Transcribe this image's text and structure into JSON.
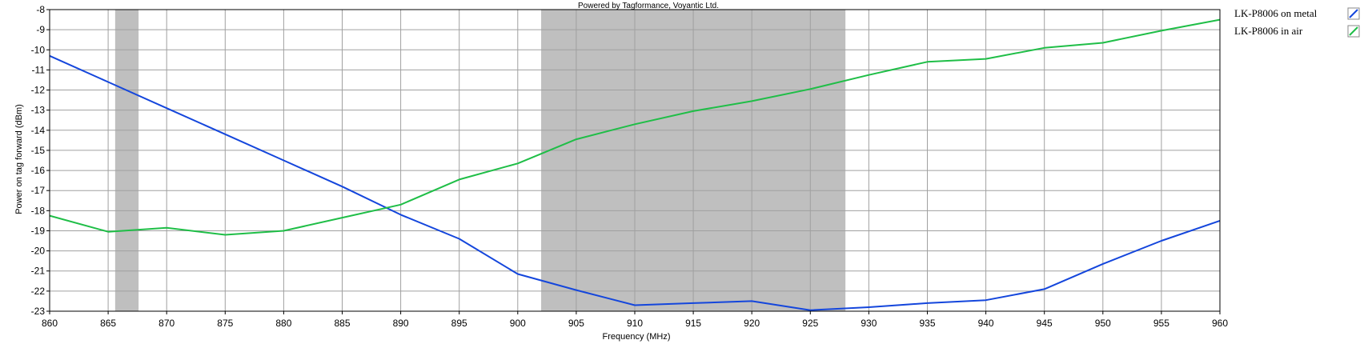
{
  "chart_data": {
    "type": "line",
    "title": "Powered by Tagformance, Voyantic Ltd.",
    "xlabel": "Frequency (MHz)",
    "ylabel": "Power on tag forward (dBm)",
    "xlim": [
      860,
      960
    ],
    "ylim": [
      -23,
      -8
    ],
    "x_ticks": [
      860,
      865,
      870,
      875,
      880,
      885,
      890,
      895,
      900,
      905,
      910,
      915,
      920,
      925,
      930,
      935,
      940,
      945,
      950,
      955,
      960
    ],
    "y_ticks": [
      -8,
      -9,
      -10,
      -11,
      -12,
      -13,
      -14,
      -15,
      -16,
      -17,
      -18,
      -19,
      -20,
      -21,
      -22,
      -23
    ],
    "grid": true,
    "legend_position": "right",
    "shaded_bands": [
      {
        "from": 865.6,
        "to": 867.6,
        "color": "#bfbfbf"
      },
      {
        "from": 902,
        "to": 928,
        "color": "#bfbfbf"
      }
    ],
    "x": [
      860,
      865,
      870,
      875,
      880,
      885,
      890,
      895,
      900,
      905,
      910,
      915,
      920,
      925,
      930,
      935,
      940,
      945,
      950,
      955,
      960
    ],
    "series": [
      {
        "name": "LK-P8006 on metal",
        "color": "#1446dc",
        "values": [
          -10.3,
          -11.6,
          -12.9,
          -14.2,
          -15.5,
          -16.8,
          -18.2,
          -19.4,
          -21.15,
          -21.95,
          -22.7,
          -22.6,
          -22.5,
          -22.95,
          -22.8,
          -22.6,
          -22.45,
          -21.9,
          -20.65,
          -19.5,
          -18.5
        ]
      },
      {
        "name": "LK-P8006 in air",
        "color": "#1fbe47",
        "values": [
          -18.25,
          -19.05,
          -18.85,
          -19.2,
          -19.0,
          -18.35,
          -17.7,
          -16.45,
          -15.65,
          -14.45,
          -13.7,
          -13.05,
          -12.55,
          -11.95,
          -11.25,
          -10.6,
          -10.45,
          -9.9,
          -9.65,
          -9.05,
          -8.5
        ]
      }
    ]
  }
}
